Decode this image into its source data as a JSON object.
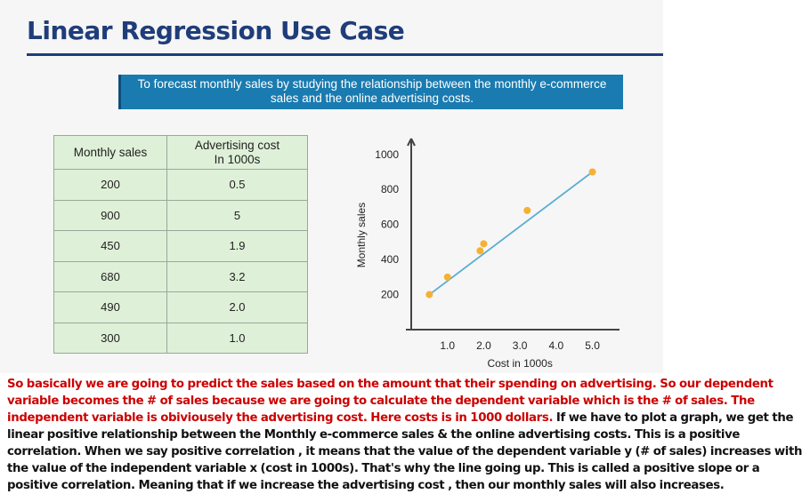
{
  "slide": {
    "title": "Linear Regression Use Case",
    "banner_line1": "To forecast monthly sales by studying the relationship between the monthly e-commerce",
    "banner_line2": "sales and the online advertising costs."
  },
  "table": {
    "headers": [
      "Monthly sales",
      "Advertising cost",
      "In 1000s"
    ],
    "rows": [
      [
        "200",
        "0.5"
      ],
      [
        "900",
        "5"
      ],
      [
        "450",
        "1.9"
      ],
      [
        "680",
        "3.2"
      ],
      [
        "490",
        "2.0"
      ],
      [
        "300",
        "1.0"
      ]
    ]
  },
  "chart_data": {
    "type": "scatter",
    "xlabel": "Cost in 1000s",
    "ylabel": "Monthly sales",
    "x_ticks": [
      "1.0",
      "2.0",
      "3.0",
      "4.0",
      "5.0"
    ],
    "y_ticks": [
      "200",
      "400",
      "600",
      "800",
      "1000"
    ],
    "xlim": [
      0,
      5.6
    ],
    "ylim": [
      0,
      1080
    ],
    "points": [
      {
        "x": 0.5,
        "y": 200
      },
      {
        "x": 1.0,
        "y": 300
      },
      {
        "x": 1.9,
        "y": 450
      },
      {
        "x": 2.0,
        "y": 490
      },
      {
        "x": 3.2,
        "y": 680
      },
      {
        "x": 5.0,
        "y": 900
      }
    ],
    "trend_line": {
      "x": [
        0.5,
        5.0
      ],
      "y": [
        200,
        900
      ]
    },
    "colors": {
      "point": "#f5b133",
      "line": "#5aaed3",
      "axis": "#444444"
    }
  },
  "explanation": {
    "red_text": "So basically we are going to predict the sales based on the amount that their spending on advertising. So our dependent variable becomes the # of sales because we are going to calculate the dependent variable which is the # of sales. The independent variable is obiviousely the advertising cost. Here costs is in 1000 dollars.",
    "black_text": " If we have to plot a graph, we get the linear positive relationship between the Monthly e-commerce sales & the online advertising costs. This is a positive correlation. When we say positive correlation , it means that the value of the dependent variable y (# of sales) increases with the value of the independent variable x (cost in 1000s). That's why the line going up. This is called a positive slope or a positive correlation. Meaning that if we increase the advertising cost , then our monthly sales will also increases."
  }
}
